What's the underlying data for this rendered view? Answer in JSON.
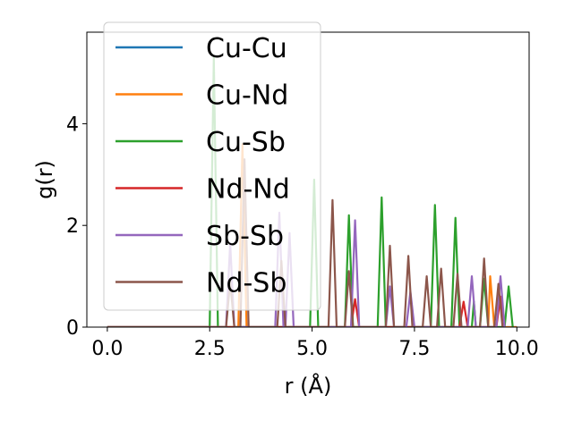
{
  "chart_data": {
    "type": "line",
    "xlabel": "r (Å)",
    "ylabel": "g(r)",
    "xlim": [
      -0.5,
      10.3
    ],
    "ylim": [
      0,
      5.8
    ],
    "xticks": [
      0.0,
      2.5,
      5.0,
      7.5,
      10.0
    ],
    "xtick_labels": [
      "0.0",
      "2.5",
      "5.0",
      "7.5",
      "10.0"
    ],
    "yticks": [
      0,
      2,
      4
    ],
    "ytick_labels": [
      "0",
      "2",
      "4"
    ],
    "legend_position": "upper-left",
    "series": [
      {
        "name": "Cu-Cu",
        "color": "#1f77b4",
        "points": [
          [
            0,
            0
          ],
          [
            10,
            0
          ]
        ]
      },
      {
        "name": "Cu-Nd",
        "color": "#ff7f0e",
        "points": [
          [
            0,
            0
          ],
          [
            3.2,
            0
          ],
          [
            3.3,
            3.6
          ],
          [
            3.4,
            0
          ],
          [
            9.3,
            0
          ],
          [
            9.35,
            1.0
          ],
          [
            9.45,
            0
          ],
          [
            10,
            0
          ]
        ]
      },
      {
        "name": "Cu-Sb",
        "color": "#2ca02c",
        "points": [
          [
            0,
            0
          ],
          [
            2.5,
            0
          ],
          [
            2.6,
            5.3
          ],
          [
            2.7,
            0
          ],
          [
            4.95,
            0
          ],
          [
            5.05,
            2.9
          ],
          [
            5.15,
            0
          ],
          [
            5.8,
            0
          ],
          [
            5.9,
            2.2
          ],
          [
            6.0,
            0
          ],
          [
            6.6,
            0
          ],
          [
            6.7,
            2.55
          ],
          [
            6.8,
            0
          ],
          [
            7.9,
            0
          ],
          [
            8.0,
            2.4
          ],
          [
            8.1,
            0
          ],
          [
            8.4,
            0
          ],
          [
            8.5,
            2.15
          ],
          [
            8.6,
            0
          ],
          [
            8.9,
            0
          ],
          [
            8.95,
            0.5
          ],
          [
            9.0,
            0
          ],
          [
            9.1,
            0
          ],
          [
            9.2,
            0.95
          ],
          [
            9.3,
            0
          ],
          [
            9.7,
            0
          ],
          [
            9.8,
            0.8
          ],
          [
            9.9,
            0
          ]
        ]
      },
      {
        "name": "Nd-Nd",
        "color": "#d62728",
        "points": [
          [
            0,
            0
          ],
          [
            5.95,
            0
          ],
          [
            6.05,
            0.55
          ],
          [
            6.15,
            0
          ],
          [
            8.6,
            0
          ],
          [
            8.7,
            0.5
          ],
          [
            8.8,
            0
          ],
          [
            9.5,
            0
          ],
          [
            9.6,
            0.6
          ],
          [
            9.7,
            0
          ]
        ]
      },
      {
        "name": "Sb-Sb",
        "color": "#9467bd",
        "points": [
          [
            0,
            0
          ],
          [
            2.9,
            0
          ],
          [
            3.0,
            1.65
          ],
          [
            3.1,
            0
          ],
          [
            4.1,
            0
          ],
          [
            4.2,
            2.25
          ],
          [
            4.3,
            0
          ],
          [
            4.35,
            0
          ],
          [
            4.45,
            1.85
          ],
          [
            4.55,
            0
          ],
          [
            5.95,
            0
          ],
          [
            6.05,
            2.1
          ],
          [
            6.15,
            0
          ],
          [
            6.8,
            0
          ],
          [
            6.9,
            0.8
          ],
          [
            7.0,
            0
          ],
          [
            7.3,
            0
          ],
          [
            7.4,
            0.7
          ],
          [
            7.5,
            0
          ],
          [
            8.8,
            0
          ],
          [
            8.9,
            1.0
          ],
          [
            9.0,
            0
          ],
          [
            9.5,
            0
          ],
          [
            9.6,
            1.0
          ],
          [
            9.7,
            0
          ]
        ]
      },
      {
        "name": "Nd-Sb",
        "color": "#8c564b",
        "points": [
          [
            0,
            0
          ],
          [
            2.9,
            0
          ],
          [
            3.0,
            0.9
          ],
          [
            3.1,
            0
          ],
          [
            3.25,
            0
          ],
          [
            3.35,
            3.3
          ],
          [
            3.45,
            0
          ],
          [
            4.15,
            0
          ],
          [
            4.25,
            1.3
          ],
          [
            4.35,
            0
          ],
          [
            5.4,
            0
          ],
          [
            5.5,
            2.5
          ],
          [
            5.6,
            0
          ],
          [
            5.8,
            0
          ],
          [
            5.9,
            1.1
          ],
          [
            6.0,
            0
          ],
          [
            6.8,
            0
          ],
          [
            6.9,
            1.6
          ],
          [
            7.0,
            0
          ],
          [
            7.25,
            0
          ],
          [
            7.35,
            1.4
          ],
          [
            7.45,
            0
          ],
          [
            7.7,
            0
          ],
          [
            7.8,
            1.0
          ],
          [
            7.9,
            0
          ],
          [
            8.05,
            0
          ],
          [
            8.15,
            1.15
          ],
          [
            8.25,
            0
          ],
          [
            8.45,
            0
          ],
          [
            8.55,
            1.05
          ],
          [
            8.65,
            0
          ],
          [
            9.1,
            0
          ],
          [
            9.2,
            1.35
          ],
          [
            9.3,
            0
          ],
          [
            9.45,
            0
          ],
          [
            9.55,
            0.85
          ],
          [
            9.65,
            0
          ]
        ]
      }
    ]
  }
}
